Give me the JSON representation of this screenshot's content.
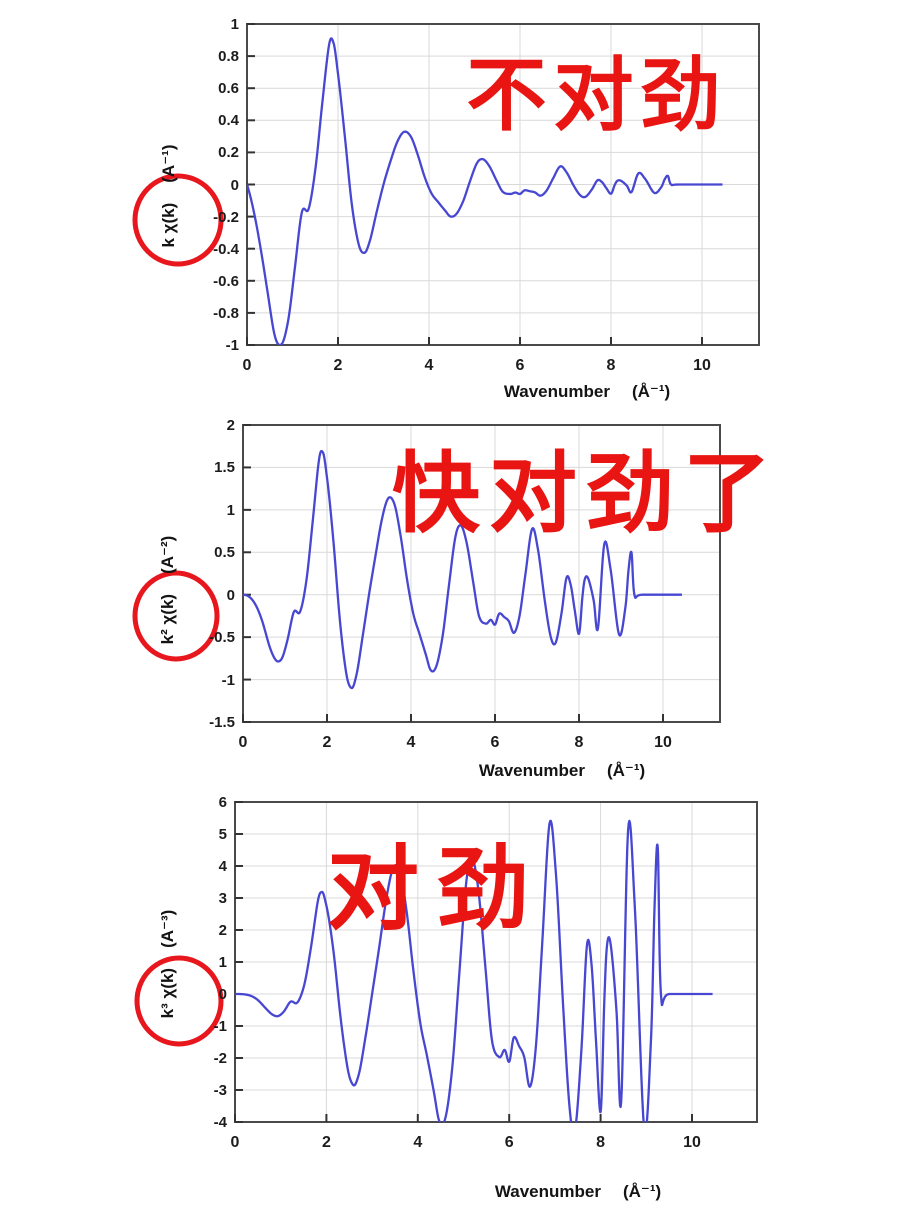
{
  "page": {
    "background": "#ffffff"
  },
  "colors": {
    "curve_blue": "#4747d2",
    "grid_gray": "#d9d9d9",
    "frame_gray": "#4a4a4a",
    "tick_mark": "#333333",
    "tick_label": "#1c1c1c",
    "annotation_red": "#e81512",
    "circle_red": "#e8161d"
  },
  "x_axis": {
    "label": "Wavenumber",
    "unit": "(Å⁻¹)",
    "ticks": [
      "0",
      "2",
      "4",
      "6",
      "8",
      "10"
    ],
    "tick_values": [
      0,
      2,
      4,
      6,
      8,
      10
    ]
  },
  "panels": [
    {
      "annotation": "不对劲",
      "y_label": "k χ(k)",
      "y_unit": "(A⁻¹)",
      "y_tick_labels": [
        "1",
        "0.8",
        "0.6",
        "0.4",
        "0.2",
        "0",
        "-0.2",
        "-0.4",
        "-0.6",
        "-0.8",
        "-1"
      ],
      "circle_icon": "red-circle"
    },
    {
      "annotation": "快对劲了",
      "y_label": "k² χ(k)",
      "y_unit": "(A⁻²)",
      "y_tick_labels": [
        "2",
        "1.5",
        "1",
        "0.5",
        "0",
        "-0.5",
        "-1",
        "-1.5"
      ],
      "circle_icon": "red-circle"
    },
    {
      "annotation": "对劲",
      "y_label": "k³ χ(k)",
      "y_unit": "(A⁻³)",
      "y_tick_labels": [
        "6",
        "5",
        "4",
        "3",
        "2",
        "1",
        "0",
        "-1",
        "-2",
        "-3",
        "-4"
      ],
      "circle_icon": "red-circle"
    }
  ],
  "chart_data": {
    "type": "line",
    "description": "Three EXAFS panels showing the same chi(k) oscillation weighted by k^1, k^2, k^3; data ends at k=10.45 (flat zero after k=9.3)",
    "xlabel": "Wavenumber (Å⁻¹)",
    "x_ticks": [
      0,
      2,
      4,
      6,
      8,
      10
    ],
    "x_axis_range": [
      0,
      11.3
    ],
    "x_data_range": [
      0,
      10.45
    ],
    "grid": true,
    "legend": false,
    "chi_anchors_k": [
      0.0,
      0.15,
      0.3,
      0.45,
      0.6,
      0.75,
      0.9,
      1.05,
      1.2,
      1.35,
      1.5,
      1.65,
      1.8,
      1.9,
      2.0,
      2.15,
      2.3,
      2.45,
      2.58,
      2.7,
      2.85,
      3.0,
      3.15,
      3.3,
      3.45,
      3.6,
      3.75,
      3.9,
      4.05,
      4.2,
      4.35,
      4.47,
      4.6,
      4.75,
      4.9,
      5.05,
      5.18,
      5.32,
      5.48,
      5.62,
      5.78,
      5.9,
      6.0,
      6.1,
      6.22,
      6.33,
      6.45,
      6.58,
      6.72,
      6.88,
      7.02,
      7.18,
      7.32,
      7.44,
      7.58,
      7.7,
      7.8,
      7.9,
      8.0,
      8.08,
      8.14,
      8.22,
      8.35,
      8.45,
      8.6,
      8.75,
      8.95,
      9.1,
      9.18,
      9.25,
      9.32,
      9.5,
      10.45
    ],
    "chi_anchors_value": [
      -0.9,
      -1.13,
      -1.33,
      -1.48,
      -1.55,
      -1.33,
      -0.95,
      -0.5,
      -0.15,
      -0.115,
      0.06,
      0.3,
      0.48,
      0.465,
      0.345,
      0.14,
      -0.05,
      -0.15,
      -0.165,
      -0.13,
      -0.06,
      0.0,
      0.045,
      0.08,
      0.095,
      0.083,
      0.05,
      0.013,
      -0.013,
      -0.026,
      -0.037,
      -0.0445,
      -0.04,
      -0.022,
      0.004,
      0.026,
      0.0305,
      0.022,
      0.005,
      -0.008,
      -0.0102,
      -0.0085,
      -0.0098,
      -0.006,
      -0.0068,
      -0.0078,
      -0.0108,
      -0.006,
      0.005,
      0.0163,
      0.011,
      -0.001,
      -0.009,
      -0.0103,
      -0.004,
      0.0033,
      0.002,
      -0.003,
      -0.0072,
      -0.0005,
      0.0028,
      0.0028,
      -0.001,
      -0.0056,
      0.008,
      0.004,
      -0.0058,
      -0.002,
      0.0035,
      0.0058,
      0.0,
      0.0,
      0.0
    ],
    "panels": [
      {
        "name": "k·χ(k)",
        "k_weight": 1,
        "ylim": [
          -1,
          1
        ],
        "y_tick_step": 0.2,
        "ylabel": "k χ(k) (A⁻¹)",
        "annotation": "不对劲",
        "key_extrema": [
          [
            0.6,
            -0.93
          ],
          [
            1.8,
            0.9
          ],
          [
            2.6,
            -0.43
          ],
          [
            3.5,
            0.32
          ],
          [
            4.5,
            -0.2
          ],
          [
            5.2,
            0.16
          ],
          [
            6.9,
            0.11
          ],
          [
            7.4,
            -0.07
          ],
          [
            8.6,
            0.07
          ],
          [
            9.25,
            0.05
          ]
        ]
      },
      {
        "name": "k²·χ(k)",
        "k_weight": 2,
        "ylim": [
          -1.5,
          2
        ],
        "y_tick_step": 0.5,
        "ylabel": "k² χ(k) (A⁻²)",
        "annotation": "快对劲了",
        "key_extrema": [
          [
            0.85,
            -0.72
          ],
          [
            1.85,
            1.68
          ],
          [
            2.6,
            -1.1
          ],
          [
            3.45,
            1.12
          ],
          [
            4.5,
            -0.87
          ],
          [
            5.15,
            0.82
          ],
          [
            6.45,
            -0.45
          ],
          [
            6.9,
            0.78
          ],
          [
            7.4,
            -0.55
          ],
          [
            8.6,
            0.6
          ],
          [
            9.0,
            -0.46
          ],
          [
            9.2,
            0.47
          ]
        ]
      },
      {
        "name": "k³·χ(k)",
        "k_weight": 3,
        "ylim": [
          -4,
          6
        ],
        "y_tick_step": 1,
        "ylabel": "k³ χ(k) (A⁻³)",
        "annotation": "对劲",
        "key_extrema": [
          [
            0.85,
            -0.6
          ],
          [
            1.9,
            3.1
          ],
          [
            2.6,
            -2.8
          ],
          [
            3.5,
            4.0
          ],
          [
            4.47,
            -3.9
          ],
          [
            5.2,
            4.2
          ],
          [
            6.45,
            -2.9
          ],
          [
            6.9,
            5.35
          ],
          [
            7.44,
            -4.2
          ],
          [
            7.7,
            1.5
          ],
          [
            8.0,
            -3.7
          ],
          [
            8.6,
            5.1
          ],
          [
            8.95,
            -4.2
          ],
          [
            9.25,
            4.6
          ]
        ]
      }
    ]
  }
}
